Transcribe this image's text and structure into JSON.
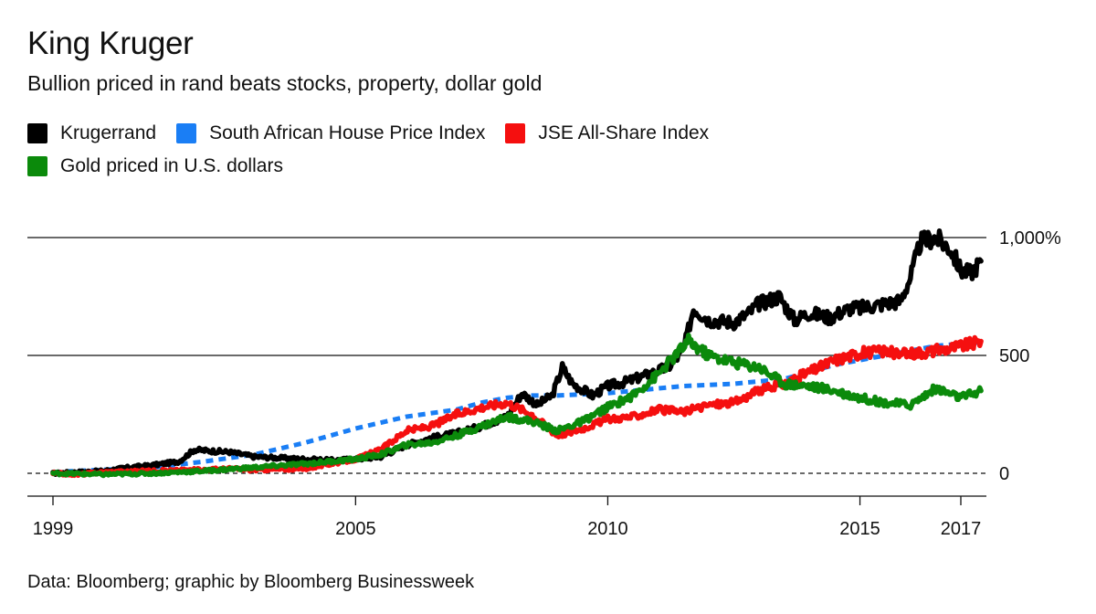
{
  "title": "King Kruger",
  "subtitle": "Bullion priced in rand beats stocks, property, dollar gold",
  "source": "Data: Bloomberg; graphic by Bloomberg Businessweek",
  "colors": {
    "krugerrand": "#000000",
    "house": "#1a7ef5",
    "jse": "#f50f0f",
    "gold_usd": "#0b8a0b"
  },
  "chart_data": {
    "type": "line",
    "x_ticks": [
      "1999",
      "2005",
      "2010",
      "2015",
      "2017"
    ],
    "y_ticks": [
      "0",
      "500",
      "1,000%"
    ],
    "ylim": [
      -100,
      1080
    ],
    "xlim": [
      1998.5,
      2017.5
    ],
    "legend_position": "top-left",
    "grid": "horizontal",
    "series": [
      {
        "name": "Krugerrand",
        "color": "#000000",
        "style": "solid",
        "points": [
          [
            1999.0,
            0
          ],
          [
            1999.5,
            5
          ],
          [
            2000.0,
            10
          ],
          [
            2000.5,
            25
          ],
          [
            2001.0,
            35
          ],
          [
            2001.5,
            50
          ],
          [
            2001.8,
            100
          ],
          [
            2002.1,
            95
          ],
          [
            2002.5,
            90
          ],
          [
            2003.0,
            70
          ],
          [
            2003.5,
            65
          ],
          [
            2004.0,
            60
          ],
          [
            2004.5,
            55
          ],
          [
            2005.0,
            60
          ],
          [
            2005.5,
            70
          ],
          [
            2006.0,
            120
          ],
          [
            2006.5,
            150
          ],
          [
            2007.0,
            170
          ],
          [
            2007.5,
            200
          ],
          [
            2008.0,
            240
          ],
          [
            2008.3,
            340
          ],
          [
            2008.6,
            290
          ],
          [
            2008.9,
            330
          ],
          [
            2009.1,
            450
          ],
          [
            2009.3,
            380
          ],
          [
            2009.7,
            330
          ],
          [
            2010.0,
            370
          ],
          [
            2010.4,
            390
          ],
          [
            2010.8,
            420
          ],
          [
            2011.2,
            450
          ],
          [
            2011.5,
            520
          ],
          [
            2011.7,
            700
          ],
          [
            2012.0,
            650
          ],
          [
            2012.5,
            640
          ],
          [
            2012.8,
            680
          ],
          [
            2013.0,
            720
          ],
          [
            2013.4,
            750
          ],
          [
            2013.7,
            650
          ],
          [
            2014.0,
            680
          ],
          [
            2014.4,
            660
          ],
          [
            2014.8,
            700
          ],
          [
            2015.0,
            700
          ],
          [
            2015.5,
            720
          ],
          [
            2015.8,
            730
          ],
          [
            2016.0,
            830
          ],
          [
            2016.2,
            980
          ],
          [
            2016.5,
            1000
          ],
          [
            2016.8,
            950
          ],
          [
            2017.0,
            860
          ],
          [
            2017.2,
            850
          ],
          [
            2017.4,
            900
          ]
        ]
      },
      {
        "name": "South African House Price Index",
        "color": "#1a7ef5",
        "style": "dashed",
        "points": [
          [
            1999.0,
            5
          ],
          [
            2000.0,
            15
          ],
          [
            2001.0,
            25
          ],
          [
            2002.0,
            50
          ],
          [
            2003.0,
            80
          ],
          [
            2004.0,
            130
          ],
          [
            2005.0,
            190
          ],
          [
            2006.0,
            240
          ],
          [
            2007.0,
            270
          ],
          [
            2007.5,
            300
          ],
          [
            2008.0,
            320
          ],
          [
            2008.5,
            330
          ],
          [
            2009.0,
            330
          ],
          [
            2010.0,
            340
          ],
          [
            2010.5,
            350
          ],
          [
            2011.0,
            360
          ],
          [
            2011.5,
            370
          ],
          [
            2012.0,
            375
          ],
          [
            2012.5,
            380
          ],
          [
            2013.0,
            390
          ],
          [
            2013.5,
            400
          ],
          [
            2014.0,
            430
          ],
          [
            2014.5,
            460
          ],
          [
            2015.0,
            480
          ],
          [
            2015.5,
            500
          ],
          [
            2016.0,
            520
          ],
          [
            2016.5,
            540
          ],
          [
            2017.0,
            550
          ],
          [
            2017.4,
            555
          ]
        ]
      },
      {
        "name": "JSE All-Share Index",
        "color": "#f50f0f",
        "style": "solid",
        "points": [
          [
            1999.0,
            0
          ],
          [
            1999.5,
            -5
          ],
          [
            2000.0,
            5
          ],
          [
            2001.0,
            10
          ],
          [
            2002.0,
            15
          ],
          [
            2002.5,
            20
          ],
          [
            2003.0,
            15
          ],
          [
            2004.0,
            20
          ],
          [
            2005.0,
            60
          ],
          [
            2005.5,
            100
          ],
          [
            2006.0,
            180
          ],
          [
            2006.5,
            200
          ],
          [
            2007.0,
            250
          ],
          [
            2007.5,
            280
          ],
          [
            2008.0,
            300
          ],
          [
            2008.5,
            250
          ],
          [
            2009.0,
            160
          ],
          [
            2009.5,
            190
          ],
          [
            2010.0,
            230
          ],
          [
            2010.5,
            240
          ],
          [
            2011.0,
            270
          ],
          [
            2011.5,
            260
          ],
          [
            2012.0,
            290
          ],
          [
            2012.5,
            300
          ],
          [
            2013.0,
            350
          ],
          [
            2013.5,
            380
          ],
          [
            2014.0,
            430
          ],
          [
            2014.5,
            480
          ],
          [
            2015.0,
            510
          ],
          [
            2015.5,
            520
          ],
          [
            2015.8,
            500
          ],
          [
            2016.0,
            510
          ],
          [
            2016.5,
            520
          ],
          [
            2017.0,
            540
          ],
          [
            2017.4,
            560
          ]
        ]
      },
      {
        "name": "Gold priced in U.S. dollars",
        "color": "#0b8a0b",
        "style": "solid",
        "points": [
          [
            1999.0,
            0
          ],
          [
            2000.0,
            -5
          ],
          [
            2001.0,
            0
          ],
          [
            2002.0,
            10
          ],
          [
            2003.0,
            25
          ],
          [
            2004.0,
            40
          ],
          [
            2005.0,
            60
          ],
          [
            2005.5,
            80
          ],
          [
            2006.0,
            120
          ],
          [
            2006.5,
            130
          ],
          [
            2007.0,
            160
          ],
          [
            2007.5,
            200
          ],
          [
            2008.0,
            240
          ],
          [
            2008.5,
            220
          ],
          [
            2009.0,
            180
          ],
          [
            2009.5,
            220
          ],
          [
            2010.0,
            280
          ],
          [
            2010.5,
            330
          ],
          [
            2011.0,
            420
          ],
          [
            2011.6,
            560
          ],
          [
            2012.0,
            500
          ],
          [
            2012.5,
            470
          ],
          [
            2013.0,
            450
          ],
          [
            2013.5,
            380
          ],
          [
            2014.0,
            370
          ],
          [
            2014.5,
            350
          ],
          [
            2015.0,
            320
          ],
          [
            2015.5,
            300
          ],
          [
            2016.0,
            290
          ],
          [
            2016.5,
            360
          ],
          [
            2017.0,
            320
          ],
          [
            2017.4,
            350
          ]
        ]
      }
    ]
  }
}
